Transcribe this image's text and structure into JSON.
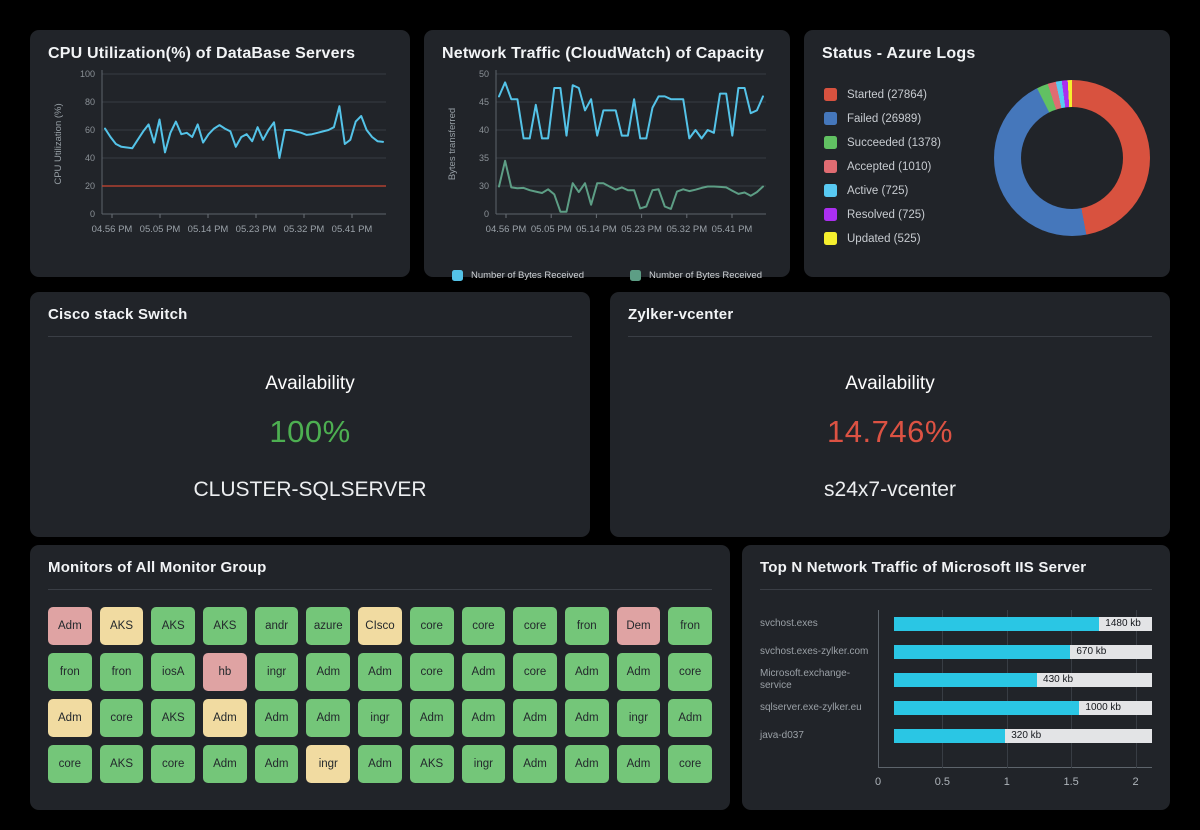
{
  "chart_data": [
    {
      "id": "cpu",
      "type": "line",
      "title": "CPU Utilization(%) of DataBase Servers",
      "ylabel": "CPU Utilization (%)",
      "yticks": [
        0,
        20,
        40,
        60,
        80,
        100
      ],
      "xticks": [
        "04.56 PM",
        "05.05 PM",
        "05.14 PM",
        "05.23 PM",
        "05.32 PM",
        "05.41 PM"
      ],
      "threshold": {
        "value": 20,
        "color": "#cc4632"
      },
      "series": [
        {
          "name": "CPU Utilization",
          "color": "#54c3e8",
          "values": [
            61,
            55,
            50,
            48,
            47.5,
            47,
            53,
            59,
            64,
            51,
            67.5,
            44,
            58,
            66,
            57,
            58,
            55,
            64,
            51,
            57,
            61,
            63.5,
            61,
            59,
            48,
            55,
            57,
            52,
            62,
            53,
            60,
            65.5,
            40,
            60,
            60,
            59,
            58,
            56.5,
            57,
            58,
            59,
            60,
            62,
            77,
            50,
            53,
            66,
            70,
            60,
            55,
            52,
            51.5
          ]
        }
      ]
    },
    {
      "id": "network",
      "type": "line",
      "title": "Network Traffic (CloudWatch) of Capacity",
      "ylabel": "Bytes transferred",
      "yticks": [
        0,
        30,
        35,
        40,
        45,
        50
      ],
      "xticks": [
        "04.56 PM",
        "05.05 PM",
        "05.14 PM",
        "05.23 PM",
        "05.32 PM",
        "05.41 PM"
      ],
      "series": [
        {
          "name": "Number of Bytes Received",
          "color": "#54c3e8",
          "values": [
            46,
            48.5,
            45.5,
            45.5,
            38.5,
            38.5,
            44.5,
            38.5,
            38.5,
            47.5,
            47.5,
            39,
            48,
            47.5,
            43.5,
            45.5,
            39,
            43.5,
            43.5,
            43.5,
            39,
            39,
            45.5,
            38.5,
            38.5,
            44,
            46,
            46,
            45.5,
            45.5,
            45.5,
            38.5,
            40,
            38.5,
            40,
            39.5,
            46.5,
            46.5,
            39,
            47.5,
            47.5,
            43,
            43.5,
            46
          ]
        },
        {
          "name": "Number of Bytes Received",
          "color": "#5d9e85",
          "values": [
            29.5,
            34.5,
            28.5,
            27.5,
            28,
            25.5,
            24,
            22.5,
            26.5,
            21,
            2.5,
            2.5,
            30.5,
            23.5,
            30.5,
            10,
            30.5,
            30.5,
            29.5,
            26,
            28.5,
            25.5,
            25.5,
            6,
            8,
            25.5,
            26.5,
            8,
            5.5,
            24,
            26.5,
            24.5,
            26,
            28,
            29.5,
            29.5,
            29,
            28.5,
            25,
            21.5,
            23,
            19.5,
            23.5,
            29.5
          ]
        }
      ]
    },
    {
      "id": "azure",
      "type": "donut",
      "title": "Status - Azure Logs",
      "segments": [
        {
          "label": "Started",
          "count": 27864,
          "color": "#d8523f"
        },
        {
          "label": "Failed",
          "count": 26989,
          "color": "#4577bb"
        },
        {
          "label": "Succeeded",
          "count": 1378,
          "color": "#61c162"
        },
        {
          "label": "Accepted",
          "count": 1010,
          "color": "#e06c72"
        },
        {
          "label": "Active",
          "count": 725,
          "color": "#58c9f2"
        },
        {
          "label": "Resolved",
          "count": 725,
          "color": "#ab2ff0"
        },
        {
          "label": "Updated",
          "count": 525,
          "color": "#f5ef2e"
        }
      ]
    },
    {
      "id": "topn",
      "type": "bar-horizontal",
      "title": "Top N Network Traffic of Microsoft IIS Server",
      "bar_color": "#2ac6e4",
      "track_color": "#e3e4e6",
      "xticks": [
        "0",
        "0.5",
        "1",
        "1.5",
        "2"
      ],
      "rows": [
        {
          "label": "svchost.exes",
          "value": "1480 kb",
          "fill_pct": 79.6
        },
        {
          "label": "svchost.exes-zylker.com",
          "value": "670 kb",
          "fill_pct": 68.4
        },
        {
          "label": "Microsoft.exchange-service",
          "value": "430 kb",
          "fill_pct": 55.5
        },
        {
          "label": "sqlserver.exe-zylker.eu",
          "value": "1000 kb",
          "fill_pct": 71.9
        },
        {
          "label": "java-d037",
          "value": "320 kb",
          "fill_pct": 43.2
        }
      ]
    }
  ],
  "availability": [
    {
      "title": "Cisco stack Switch",
      "metric": "Availability",
      "value": "100%",
      "value_color": "#4daf51",
      "target": "CLUSTER-SQLSERVER"
    },
    {
      "title": "Zylker-vcenter",
      "metric": "Availability",
      "value": "14.746%",
      "value_color": "#dc5243",
      "target": "s24x7-vcenter"
    }
  ],
  "monitors": {
    "title": "Monitors of All Monitor Group",
    "status_colors": {
      "up": "#74c679",
      "trouble": "#f1dba1",
      "critical": "#dfa3a3"
    },
    "tiles": [
      {
        "label": "Adm",
        "status": "critical"
      },
      {
        "label": "AKS",
        "status": "trouble"
      },
      {
        "label": "AKS",
        "status": "up"
      },
      {
        "label": "AKS",
        "status": "up"
      },
      {
        "label": "andr",
        "status": "up"
      },
      {
        "label": "azure",
        "status": "up"
      },
      {
        "label": "CIsco",
        "status": "trouble"
      },
      {
        "label": "core",
        "status": "up"
      },
      {
        "label": "core",
        "status": "up"
      },
      {
        "label": "core",
        "status": "up"
      },
      {
        "label": "fron",
        "status": "up"
      },
      {
        "label": "Dem",
        "status": "critical"
      },
      {
        "label": "fron",
        "status": "up"
      },
      {
        "label": "fron",
        "status": "up"
      },
      {
        "label": "fron",
        "status": "up"
      },
      {
        "label": "iosA",
        "status": "up"
      },
      {
        "label": "hb",
        "status": "critical"
      },
      {
        "label": "ingr",
        "status": "up"
      },
      {
        "label": "Adm",
        "status": "up"
      },
      {
        "label": "Adm",
        "status": "up"
      },
      {
        "label": "core",
        "status": "up"
      },
      {
        "label": "Adm",
        "status": "up"
      },
      {
        "label": "core",
        "status": "up"
      },
      {
        "label": "Adm",
        "status": "up"
      },
      {
        "label": "Adm",
        "status": "up"
      },
      {
        "label": "core",
        "status": "up"
      },
      {
        "label": "Adm",
        "status": "trouble"
      },
      {
        "label": "core",
        "status": "up"
      },
      {
        "label": "AKS",
        "status": "up"
      },
      {
        "label": "Adm",
        "status": "trouble"
      },
      {
        "label": "Adm",
        "status": "up"
      },
      {
        "label": "Adm",
        "status": "up"
      },
      {
        "label": "ingr",
        "status": "up"
      },
      {
        "label": "Adm",
        "status": "up"
      },
      {
        "label": "Adm",
        "status": "up"
      },
      {
        "label": "Adm",
        "status": "up"
      },
      {
        "label": "Adm",
        "status": "up"
      },
      {
        "label": "ingr",
        "status": "up"
      },
      {
        "label": "Adm",
        "status": "up"
      },
      {
        "label": "core",
        "status": "up"
      },
      {
        "label": "AKS",
        "status": "up"
      },
      {
        "label": "core",
        "status": "up"
      },
      {
        "label": "Adm",
        "status": "up"
      },
      {
        "label": "Adm",
        "status": "up"
      },
      {
        "label": "ingr",
        "status": "trouble"
      },
      {
        "label": "Adm",
        "status": "up"
      },
      {
        "label": "AKS",
        "status": "up"
      },
      {
        "label": "ingr",
        "status": "up"
      },
      {
        "label": "Adm",
        "status": "up"
      },
      {
        "label": "Adm",
        "status": "up"
      },
      {
        "label": "Adm",
        "status": "up"
      },
      {
        "label": "core",
        "status": "up"
      }
    ]
  }
}
